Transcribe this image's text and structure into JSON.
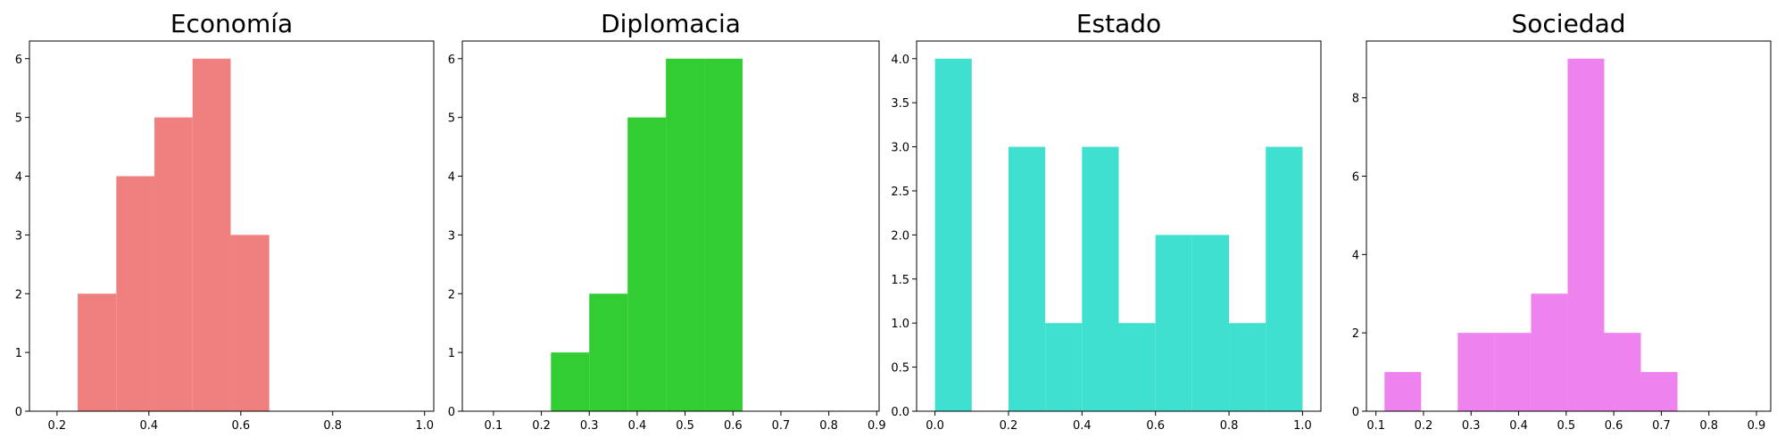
{
  "chart_data": [
    {
      "type": "bar",
      "title": "Economía",
      "color": "#f08080",
      "xlim": [
        0.14,
        1.02
      ],
      "ylim": [
        0,
        6.3
      ],
      "xticks": [
        0.2,
        0.4,
        0.6,
        0.8,
        1.0
      ],
      "xtick_labels": [
        "0.2",
        "0.4",
        "0.6",
        "0.8",
        "1.0"
      ],
      "yticks": [
        0,
        1,
        2,
        3,
        4,
        5,
        6
      ],
      "ytick_labels": [
        "0",
        "1",
        "2",
        "3",
        "4",
        "5",
        "6"
      ],
      "bins": [
        {
          "x0": 0.245,
          "x1": 0.329,
          "count": 2
        },
        {
          "x0": 0.329,
          "x1": 0.412,
          "count": 4
        },
        {
          "x0": 0.412,
          "x1": 0.495,
          "count": 5
        },
        {
          "x0": 0.495,
          "x1": 0.578,
          "count": 6
        },
        {
          "x0": 0.578,
          "x1": 0.662,
          "count": 3
        }
      ]
    },
    {
      "type": "bar",
      "title": "Diplomacia",
      "color": "#32cd32",
      "xlim": [
        0.035,
        0.905
      ],
      "ylim": [
        0,
        6.3
      ],
      "xticks": [
        0.1,
        0.2,
        0.3,
        0.4,
        0.5,
        0.6,
        0.7,
        0.8,
        0.9
      ],
      "xtick_labels": [
        "0.1",
        "0.2",
        "0.3",
        "0.4",
        "0.5",
        "0.6",
        "0.7",
        "0.8",
        "0.9"
      ],
      "yticks": [
        0,
        1,
        2,
        3,
        4,
        5,
        6
      ],
      "ytick_labels": [
        "0",
        "1",
        "2",
        "3",
        "4",
        "5",
        "6"
      ],
      "bins": [
        {
          "x0": 0.22,
          "x1": 0.3,
          "count": 1
        },
        {
          "x0": 0.3,
          "x1": 0.38,
          "count": 2
        },
        {
          "x0": 0.38,
          "x1": 0.46,
          "count": 5
        },
        {
          "x0": 0.46,
          "x1": 0.54,
          "count": 6
        },
        {
          "x0": 0.54,
          "x1": 0.62,
          "count": 6
        }
      ]
    },
    {
      "type": "bar",
      "title": "Estado",
      "color": "#40e0d0",
      "xlim": [
        -0.05,
        1.05
      ],
      "ylim": [
        0,
        4.2
      ],
      "xticks": [
        0.0,
        0.2,
        0.4,
        0.6,
        0.8,
        1.0
      ],
      "xtick_labels": [
        "0.0",
        "0.2",
        "0.4",
        "0.6",
        "0.8",
        "1.0"
      ],
      "yticks": [
        0,
        0.5,
        1.0,
        1.5,
        2.0,
        2.5,
        3.0,
        3.5,
        4.0
      ],
      "ytick_labels": [
        "0.0",
        "0.5",
        "1.0",
        "1.5",
        "2.0",
        "2.5",
        "3.0",
        "3.5",
        "4.0"
      ],
      "bins": [
        {
          "x0": 0.0,
          "x1": 0.1,
          "count": 4
        },
        {
          "x0": 0.1,
          "x1": 0.2,
          "count": 0
        },
        {
          "x0": 0.2,
          "x1": 0.3,
          "count": 3
        },
        {
          "x0": 0.3,
          "x1": 0.4,
          "count": 1
        },
        {
          "x0": 0.4,
          "x1": 0.5,
          "count": 3
        },
        {
          "x0": 0.5,
          "x1": 0.6,
          "count": 1
        },
        {
          "x0": 0.6,
          "x1": 0.7,
          "count": 2
        },
        {
          "x0": 0.7,
          "x1": 0.8,
          "count": 2
        },
        {
          "x0": 0.8,
          "x1": 0.9,
          "count": 1
        },
        {
          "x0": 0.9,
          "x1": 1.0,
          "count": 3
        }
      ]
    },
    {
      "type": "bar",
      "title": "Sociedad",
      "color": "#ee82ee",
      "xlim": [
        0.08,
        0.93
      ],
      "ylim": [
        0,
        9.45
      ],
      "xticks": [
        0.1,
        0.2,
        0.3,
        0.4,
        0.5,
        0.6,
        0.7,
        0.8,
        0.9
      ],
      "xtick_labels": [
        "0.1",
        "0.2",
        "0.3",
        "0.4",
        "0.5",
        "0.6",
        "0.7",
        "0.8",
        "0.9"
      ],
      "yticks": [
        0,
        2,
        4,
        6,
        8
      ],
      "ytick_labels": [
        "0",
        "2",
        "4",
        "6",
        "8"
      ],
      "bins": [
        {
          "x0": 0.118,
          "x1": 0.195,
          "count": 1
        },
        {
          "x0": 0.195,
          "x1": 0.272,
          "count": 0
        },
        {
          "x0": 0.272,
          "x1": 0.349,
          "count": 2
        },
        {
          "x0": 0.349,
          "x1": 0.426,
          "count": 2
        },
        {
          "x0": 0.426,
          "x1": 0.503,
          "count": 3
        },
        {
          "x0": 0.503,
          "x1": 0.58,
          "count": 9
        },
        {
          "x0": 0.58,
          "x1": 0.657,
          "count": 2
        },
        {
          "x0": 0.657,
          "x1": 0.734,
          "count": 1
        }
      ]
    }
  ]
}
